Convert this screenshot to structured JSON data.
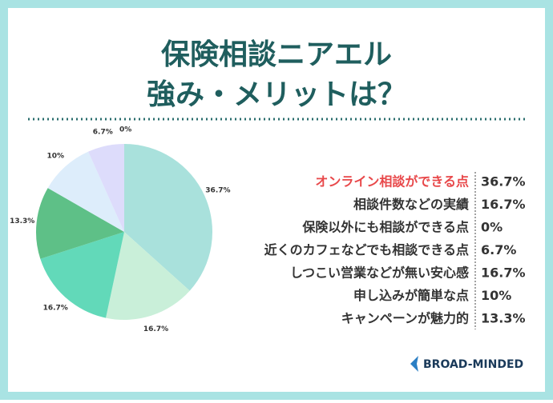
{
  "header": {
    "title_lines": [
      "保険相談ニアエル",
      "強み・メリットは？"
    ]
  },
  "chart_data": {
    "type": "pie",
    "values": [
      36.7,
      16.7,
      16.7,
      13.3,
      10,
      6.7,
      0
    ],
    "value_labels": [
      "36.7%",
      "16.7%",
      "16.7%",
      "13.3%",
      "10%",
      "6.7%",
      "0%"
    ],
    "colors": [
      "#a9e1dc",
      "#c9efd9",
      "#62d9b9",
      "#5ec087",
      "#ddedfb",
      "#dddcfb",
      "#e8e8fb"
    ]
  },
  "table": {
    "rows": [
      [
        "オンライン相談ができる点",
        "36.7%"
      ],
      [
        "相談件数などの実績",
        "16.7%"
      ],
      [
        "保険以外にも相談ができる点",
        "0%"
      ],
      [
        "近くのカフェなどでも相談できる点",
        "6.7%"
      ],
      [
        "しつこい営業などが無い安心感",
        "16.7%"
      ],
      [
        "申し込みが簡単な点",
        "10%"
      ],
      [
        "キャンペーンが魅力的",
        "13.3%"
      ]
    ]
  },
  "footer": {
    "logo": "BROAD-MINDED"
  }
}
